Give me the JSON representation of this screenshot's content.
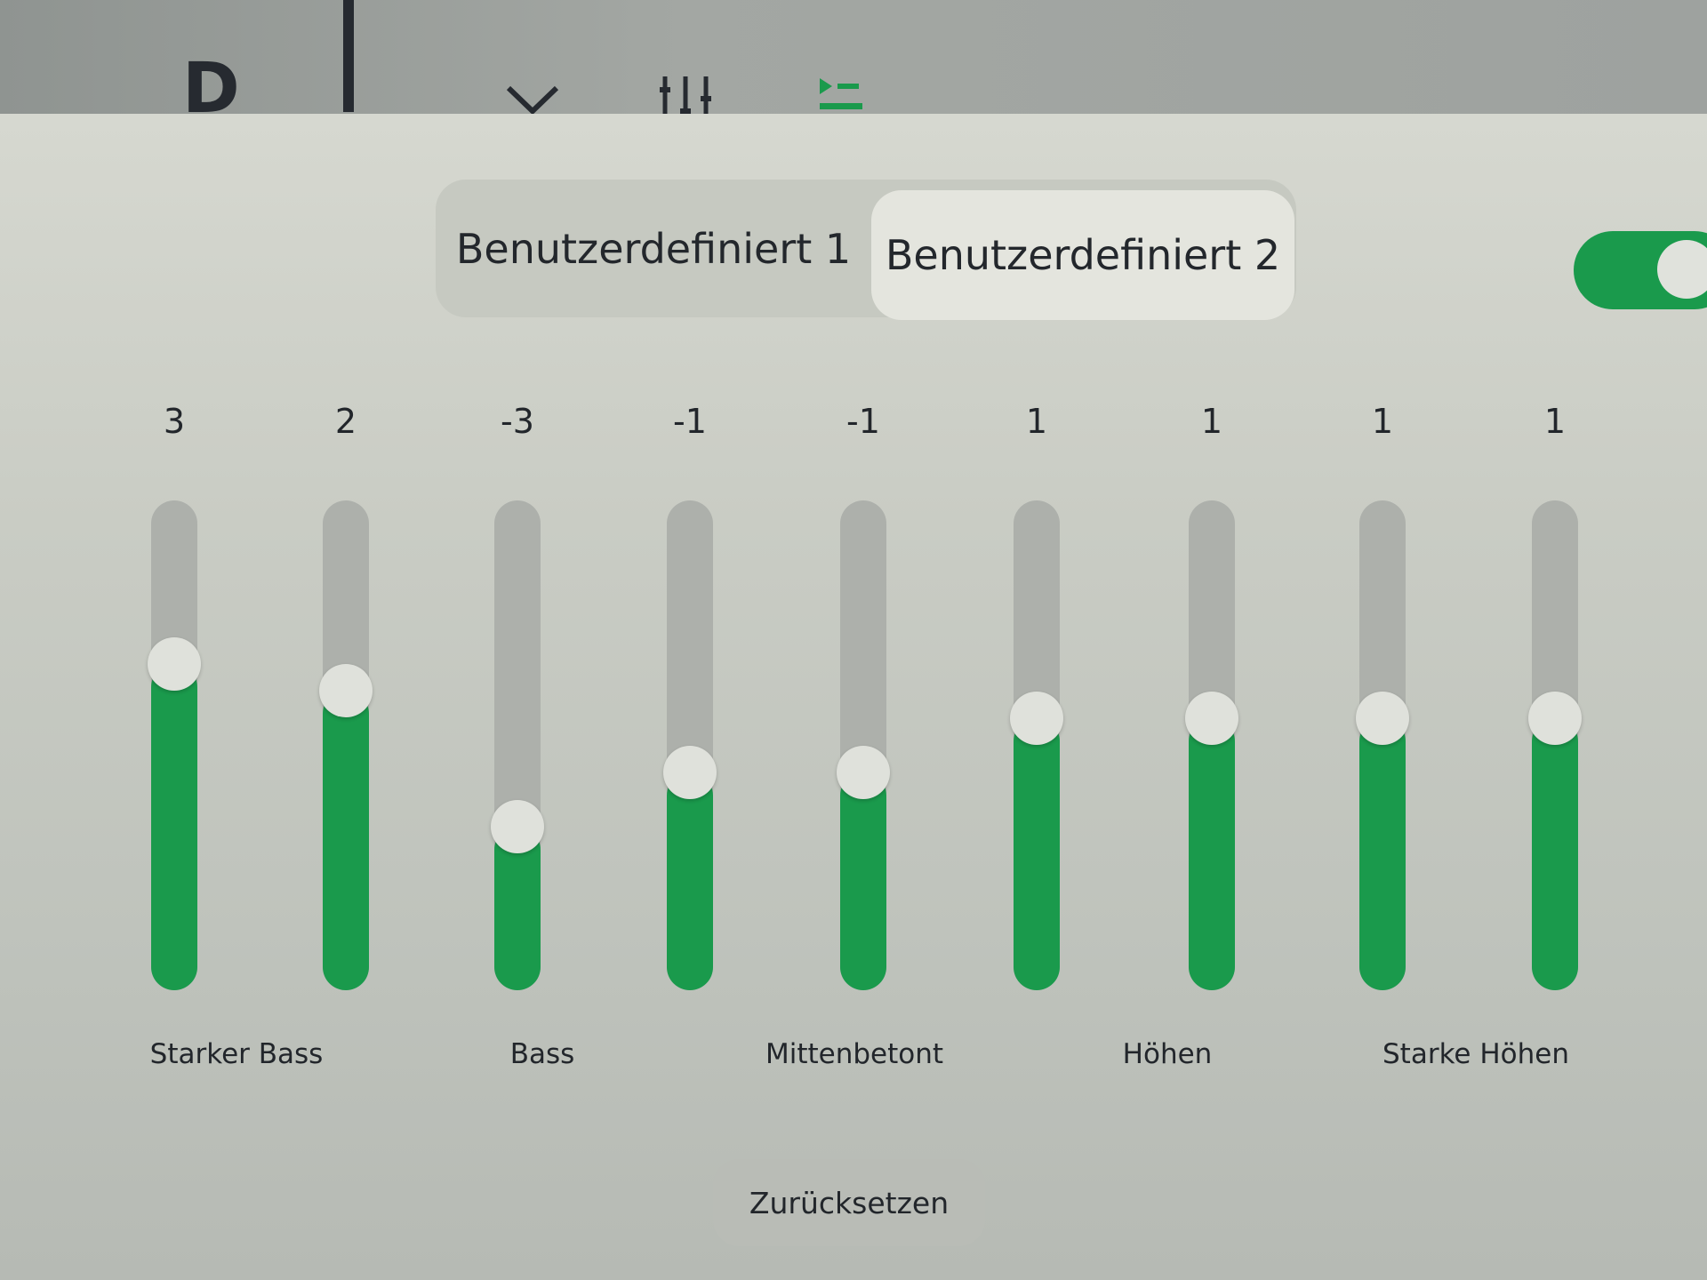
{
  "topbar": {
    "gear": "D"
  },
  "presets": [
    {
      "label": "Benutzerdefiniert 1",
      "selected": false
    },
    {
      "label": "Benutzerdefiniert 2",
      "selected": true
    }
  ],
  "toggle": {
    "on": true
  },
  "colors": {
    "accent": "#1a9a4c"
  },
  "bands": [
    3,
    2,
    -3,
    -1,
    -1,
    1,
    1,
    1,
    1
  ],
  "band_labels": {
    "starker_bass": "Starker Bass",
    "bass": "Bass",
    "mittenbetont": "Mittenbetont",
    "hoehen": "Höhen",
    "starke_hoehen": "Starke Höhen"
  },
  "reset_label": "Zurücksetzen"
}
